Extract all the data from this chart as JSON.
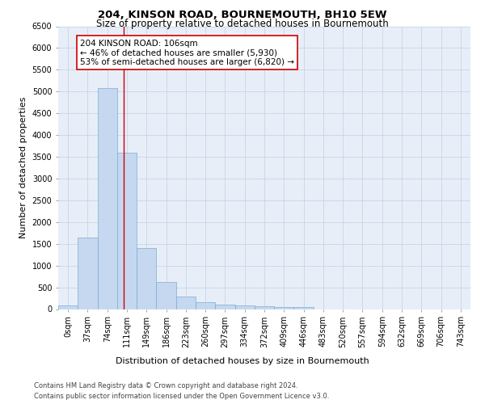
{
  "title": "204, KINSON ROAD, BOURNEMOUTH, BH10 5EW",
  "subtitle": "Size of property relative to detached houses in Bournemouth",
  "xlabel": "Distribution of detached houses by size in Bournemouth",
  "ylabel": "Number of detached properties",
  "footer_line1": "Contains HM Land Registry data © Crown copyright and database right 2024.",
  "footer_line2": "Contains public sector information licensed under the Open Government Licence v3.0.",
  "bar_labels": [
    "0sqm",
    "37sqm",
    "74sqm",
    "111sqm",
    "149sqm",
    "186sqm",
    "223sqm",
    "260sqm",
    "297sqm",
    "334sqm",
    "372sqm",
    "409sqm",
    "446sqm",
    "483sqm",
    "520sqm",
    "557sqm",
    "594sqm",
    "632sqm",
    "669sqm",
    "706sqm",
    "743sqm"
  ],
  "bar_values": [
    75,
    1650,
    5080,
    3600,
    1410,
    620,
    295,
    150,
    110,
    80,
    60,
    40,
    50,
    0,
    0,
    0,
    0,
    0,
    0,
    0,
    0
  ],
  "bar_color": "#c5d8ef",
  "bar_edge_color": "#7aadd4",
  "bar_width": 1.0,
  "vline_x": 2.85,
  "vline_color": "#cc0000",
  "annotation_text": "204 KINSON ROAD: 106sqm\n← 46% of detached houses are smaller (5,930)\n53% of semi-detached houses are larger (6,820) →",
  "annotation_box_color": "#cc0000",
  "ylim": [
    0,
    6500
  ],
  "yticks": [
    0,
    500,
    1000,
    1500,
    2000,
    2500,
    3000,
    3500,
    4000,
    4500,
    5000,
    5500,
    6000,
    6500
  ],
  "grid_color": "#c8d4e8",
  "background_color": "#e8eef8",
  "title_fontsize": 9.5,
  "subtitle_fontsize": 8.5,
  "ylabel_fontsize": 8,
  "xlabel_fontsize": 8,
  "tick_fontsize": 7,
  "annotation_fontsize": 7.5,
  "footer_fontsize": 6
}
